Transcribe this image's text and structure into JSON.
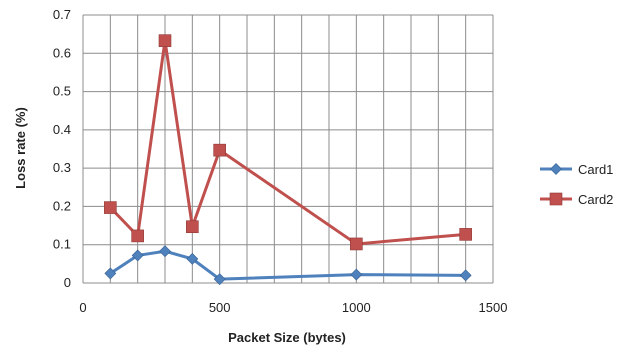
{
  "chart_data": {
    "type": "line",
    "title": "",
    "xlabel": "Packet Size (bytes)",
    "ylabel": "Loss rate (%)",
    "xlim": [
      0,
      1500
    ],
    "ylim": [
      0,
      0.7
    ],
    "x_ticks": [
      "0",
      "500",
      "1000",
      "1500"
    ],
    "y_ticks": [
      "0",
      "0.1",
      "0.2",
      "0.3",
      "0.4",
      "0.5",
      "0.6",
      "0.7"
    ],
    "grid": true,
    "legend_position": "right",
    "series": [
      {
        "name": "Card1",
        "color": "#4f81bd",
        "marker": "diamond",
        "x": [
          100,
          200,
          300,
          400,
          500,
          1000,
          1400
        ],
        "y": [
          0.025,
          0.072,
          0.083,
          0.063,
          0.01,
          0.022,
          0.02
        ]
      },
      {
        "name": "Card2",
        "color": "#c0504d",
        "marker": "square",
        "x": [
          100,
          200,
          300,
          400,
          500,
          1000,
          1400
        ],
        "y": [
          0.197,
          0.123,
          0.633,
          0.147,
          0.347,
          0.102,
          0.127
        ]
      }
    ]
  }
}
